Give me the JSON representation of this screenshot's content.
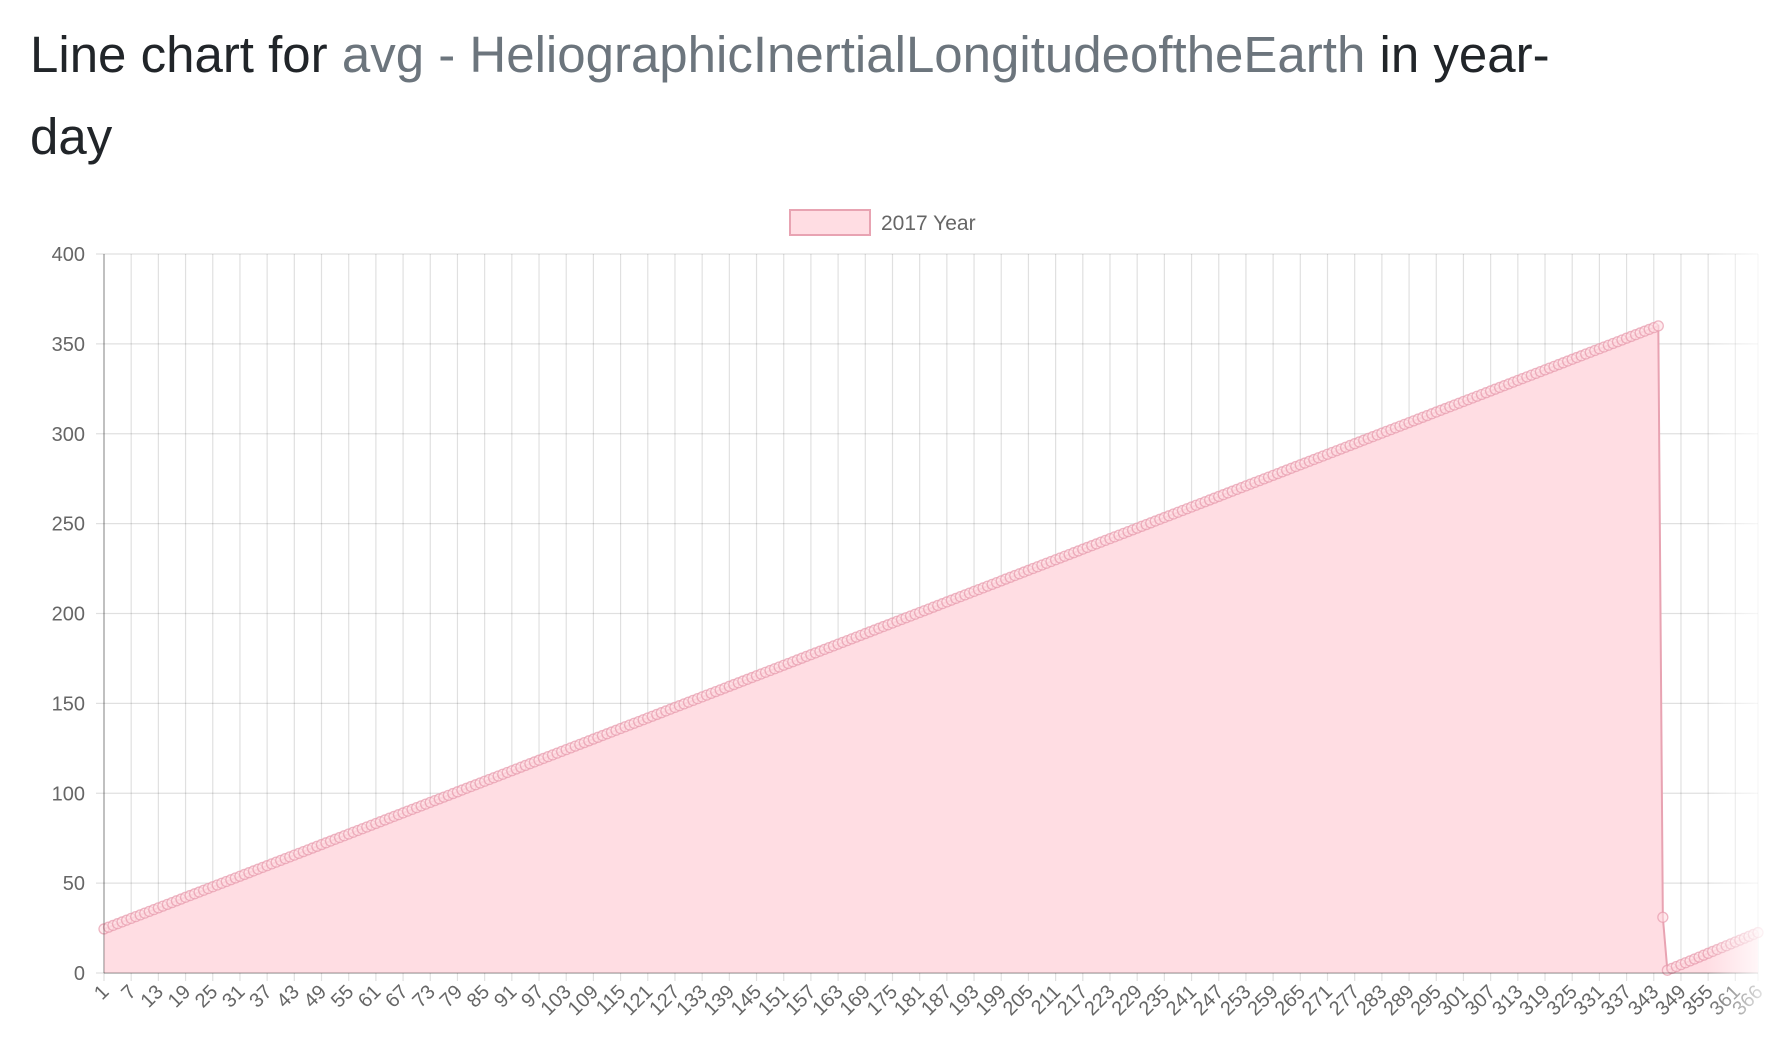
{
  "page": {
    "title_prefix": "Line chart for ",
    "title_highlight": "avg - HeliographicInertialLongitudeoftheEarth",
    "title_suffix": " in year-day"
  },
  "chart_data": {
    "type": "area",
    "title": "Line chart for avg - HeliographicInertialLongitudeoftheEarth in year-day",
    "xlabel": "",
    "ylabel": "",
    "x_start": 1,
    "x_end": 366,
    "x_tick_step": 6,
    "x_tick_labels_extra": [
      366
    ],
    "ylim": [
      0,
      400
    ],
    "y_ticks": [
      0,
      50,
      100,
      150,
      200,
      250,
      300,
      350,
      400
    ],
    "grid": true,
    "legend_position": "top-center",
    "series": [
      {
        "name": "2017 Year",
        "color_fill": "#ffdde3",
        "color_line": "#e8a3b2",
        "color_point": "#e79aad",
        "segments": [
          {
            "x_from": 1,
            "x_to": 344,
            "y_from": 24.5,
            "y_to": 360.0
          },
          {
            "x_from": 345,
            "x_to": 345,
            "y_from": 31.0,
            "y_to": 31.0
          },
          {
            "x_from": 346,
            "x_to": 366,
            "y_from": 1.5,
            "y_to": 22.5
          }
        ]
      }
    ]
  }
}
